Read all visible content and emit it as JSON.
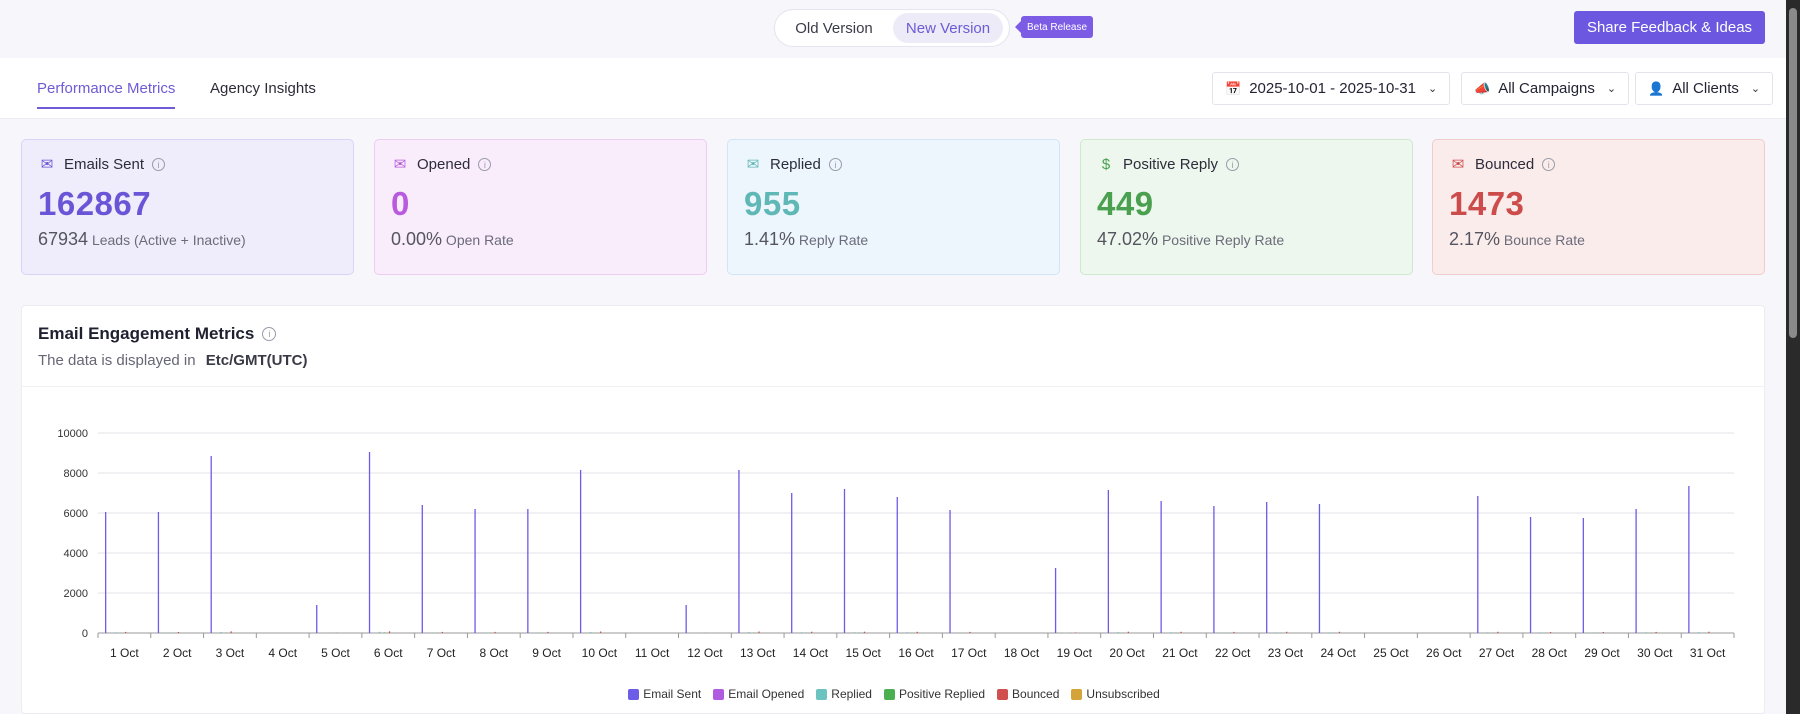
{
  "top": {
    "old_version": "Old Version",
    "new_version": "New Version",
    "beta": "Beta Release",
    "feedback": "Share Feedback & Ideas"
  },
  "tabs": [
    "Performance Metrics",
    "Agency Insights"
  ],
  "filters": {
    "date_range": "2025-10-01 - 2025-10-31",
    "campaigns": "All Campaigns",
    "clients": "All Clients"
  },
  "cards": [
    {
      "title": "Emails Sent",
      "value": "162867",
      "sub_value": "67934",
      "sub_label": "Leads (Active + Inactive)",
      "color": "#6a55d6",
      "bg": "#efedfb",
      "border": "#d9d4f6",
      "icon": "email-sent-icon",
      "glyph": "✉"
    },
    {
      "title": "Opened",
      "value": "0",
      "sub_value": "0.00%",
      "sub_label": "Open Rate",
      "color": "#b85bdf",
      "bg": "#f9ecfb",
      "border": "#ecccf2",
      "icon": "email-opened-icon",
      "glyph": "✉"
    },
    {
      "title": "Replied",
      "value": "955",
      "sub_value": "1.41%",
      "sub_label": "Reply Rate",
      "color": "#5fb8b6",
      "bg": "#edf5fd",
      "border": "#d2e5f6",
      "icon": "reply-icon",
      "glyph": "✉"
    },
    {
      "title": "Positive Reply",
      "value": "449",
      "sub_value": "47.02%",
      "sub_label": "Positive Reply Rate",
      "color": "#4aa04f",
      "bg": "#edf7ed",
      "border": "#cfe8cf",
      "icon": "dollar-icon",
      "glyph": "$"
    },
    {
      "title": "Bounced",
      "value": "1473",
      "sub_value": "2.17%",
      "sub_label": "Bounce Rate",
      "color": "#cc4b4b",
      "bg": "#fbecec",
      "border": "#f1cccc",
      "icon": "bounced-icon",
      "glyph": "✉"
    }
  ],
  "panel": {
    "title": "Email Engagement Metrics",
    "sub_label": "The data is displayed in",
    "timezone": "Etc/GMT(UTC)"
  },
  "chart_data": {
    "type": "bar",
    "title": "",
    "xlabel": "",
    "ylabel": "",
    "ylim": [
      0,
      10000
    ],
    "yticks": [
      0,
      2000,
      4000,
      6000,
      8000,
      10000
    ],
    "grid": true,
    "legend_position": "bottom",
    "categories": [
      "1 Oct",
      "2 Oct",
      "3 Oct",
      "4 Oct",
      "5 Oct",
      "6 Oct",
      "7 Oct",
      "8 Oct",
      "9 Oct",
      "10 Oct",
      "11 Oct",
      "12 Oct",
      "13 Oct",
      "14 Oct",
      "15 Oct",
      "16 Oct",
      "17 Oct",
      "18 Oct",
      "19 Oct",
      "20 Oct",
      "21 Oct",
      "22 Oct",
      "23 Oct",
      "24 Oct",
      "25 Oct",
      "26 Oct",
      "27 Oct",
      "28 Oct",
      "29 Oct",
      "30 Oct",
      "31 Oct"
    ],
    "series": [
      {
        "name": "Email Sent",
        "color": "#6c5ce7",
        "values": [
          6050,
          6050,
          8850,
          0,
          1400,
          9050,
          6400,
          6200,
          6200,
          8150,
          0,
          1400,
          8150,
          7000,
          7200,
          6800,
          6150,
          0,
          3250,
          7150,
          6600,
          6350,
          6550,
          6450,
          0,
          0,
          6850,
          5800,
          5750,
          6200,
          7350
        ]
      },
      {
        "name": "Email Opened",
        "color": "#b05ce0",
        "values": [
          0,
          0,
          0,
          0,
          0,
          0,
          0,
          0,
          0,
          0,
          0,
          0,
          0,
          0,
          0,
          0,
          0,
          0,
          0,
          0,
          0,
          0,
          0,
          0,
          0,
          0,
          0,
          0,
          0,
          0,
          0
        ]
      },
      {
        "name": "Replied",
        "color": "#6cc3c0",
        "values": [
          35,
          30,
          55,
          0,
          10,
          60,
          35,
          30,
          30,
          50,
          0,
          10,
          50,
          40,
          40,
          40,
          35,
          0,
          20,
          45,
          40,
          35,
          35,
          35,
          0,
          0,
          40,
          35,
          35,
          40,
          45
        ]
      },
      {
        "name": "Positive Replied",
        "color": "#4caf50",
        "values": [
          15,
          15,
          25,
          0,
          5,
          30,
          15,
          15,
          15,
          25,
          0,
          5,
          25,
          20,
          20,
          20,
          15,
          0,
          10,
          20,
          20,
          15,
          15,
          15,
          0,
          0,
          20,
          15,
          15,
          20,
          20
        ]
      },
      {
        "name": "Bounced",
        "color": "#d05050",
        "values": [
          55,
          50,
          80,
          0,
          15,
          85,
          55,
          55,
          55,
          75,
          0,
          15,
          75,
          65,
          65,
          60,
          55,
          0,
          30,
          65,
          60,
          55,
          60,
          60,
          0,
          0,
          60,
          50,
          50,
          55,
          65
        ]
      },
      {
        "name": "Unsubscribed",
        "color": "#d4a33a",
        "values": [
          0,
          0,
          0,
          0,
          0,
          0,
          0,
          0,
          0,
          0,
          0,
          0,
          0,
          0,
          0,
          0,
          0,
          0,
          0,
          0,
          0,
          0,
          0,
          0,
          0,
          0,
          0,
          0,
          0,
          0,
          0
        ]
      }
    ]
  }
}
